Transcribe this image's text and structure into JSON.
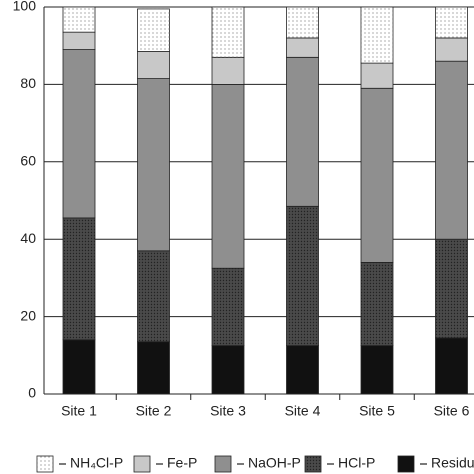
{
  "chart_data": {
    "type": "stacked_bar",
    "categories": [
      "Site 1",
      "Site 2",
      "Site 3",
      "Site 4",
      "Site 5",
      "Site 6"
    ],
    "series": [
      {
        "name": "NH₄Cl-P",
        "color": "#ffffff",
        "values": [
          6.5,
          11,
          13,
          8,
          14.5,
          8
        ]
      },
      {
        "name": "Fe-P",
        "color": "#c8c8c8",
        "values": [
          4.5,
          7,
          7,
          5,
          6.5,
          6
        ]
      },
      {
        "name": "NaOH-P",
        "color": "#8f8f8f",
        "values": [
          43.5,
          44.5,
          47.5,
          38.5,
          45,
          46
        ]
      },
      {
        "name": "HCl-P",
        "color": "#4a4a4a",
        "values": [
          31.5,
          23.5,
          20,
          36,
          21.5,
          25.5
        ]
      },
      {
        "name": "Residual",
        "color": "#111111",
        "values": [
          14,
          13.5,
          12.5,
          12.5,
          12.5,
          14.5
        ]
      }
    ],
    "ylim": [
      0,
      100
    ],
    "yticks": [
      0,
      20,
      40,
      60,
      80,
      100
    ],
    "grid": true
  }
}
